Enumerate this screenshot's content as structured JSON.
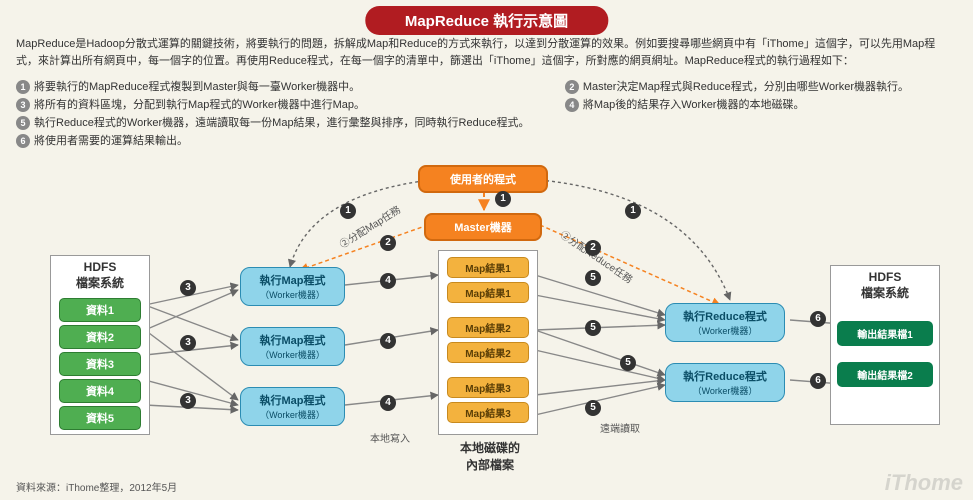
{
  "title": "MapReduce 執行示意圖",
  "intro": "MapReduce是Hadoop分散式運算的關鍵技術，將要執行的問題，拆解成Map和Reduce的方式來執行，以達到分散運算的效果。例如要搜尋哪些網頁中有「iThome」這個字，可以先用Map程式，來計算出所有網頁中，每一個字的位置。再使用Reduce程式，在每一個字的清單中，篩選出「iThome」這個字，所對應的網頁網址。MapReduce程式的執行過程如下：",
  "steps_left": [
    {
      "n": "1",
      "t": "將要執行的MapReduce程式複製到Master與每一臺Worker機器中。"
    },
    {
      "n": "3",
      "t": "將所有的資料區塊，分配到執行Map程式的Worker機器中進行Map。"
    },
    {
      "n": "5",
      "t": "執行Reduce程式的Worker機器，遠端讀取每一份Map結果，進行彙整與排序，同時執行Reduce程式。"
    },
    {
      "n": "6",
      "t": "將使用者需要的運算結果輸出。"
    }
  ],
  "steps_right": [
    {
      "n": "2",
      "t": "Master決定Map程式與Reduce程式，分別由哪些Worker機器執行。"
    },
    {
      "n": "4",
      "t": "將Map後的結果存入Worker機器的本地磁碟。"
    }
  ],
  "hdfs_left": {
    "title": "HDFS\n檔案系統",
    "items": [
      "資料1",
      "資料2",
      "資料3",
      "資料4",
      "資料5"
    ]
  },
  "hdfs_right": {
    "title": "HDFS\n檔案系統",
    "items": [
      "輸出結果檔1",
      "輸出結果檔2"
    ]
  },
  "user_prog": "使用者的程式",
  "master": "Master機器",
  "map_workers": [
    {
      "l1": "執行Map程式",
      "l2": "（Worker機器）"
    },
    {
      "l1": "執行Map程式",
      "l2": "（Worker機器）"
    },
    {
      "l1": "執行Map程式",
      "l2": "（Worker機器）"
    }
  ],
  "reduce_workers": [
    {
      "l1": "執行Reduce程式",
      "l2": "（Worker機器）"
    },
    {
      "l1": "執行Reduce程式",
      "l2": "（Worker機器）"
    }
  ],
  "map_results": [
    "Map結果1",
    "Map結果1",
    "Map結果2",
    "Map結果2",
    "Map結果3",
    "Map結果3"
  ],
  "local_disk_title": "本地磁碟的\n內部檔案",
  "ann_assign_map": "②分配Map任務",
  "ann_assign_reduce": "②分配Reduce任務",
  "ann_local_write": "本地寫入",
  "ann_remote_read": "遠端讀取",
  "footer": "資料來源：iThome整理，2012年5月",
  "watermark": "iThome",
  "colors": {
    "bg": "#f5f3ea",
    "red": "#b11c21",
    "orange": "#f58220",
    "yellow": "#f3b23e",
    "blue": "#8fd4ea",
    "green": "#4fae51",
    "dgreen": "#0a7d4d",
    "line": "#7a7a7a"
  }
}
